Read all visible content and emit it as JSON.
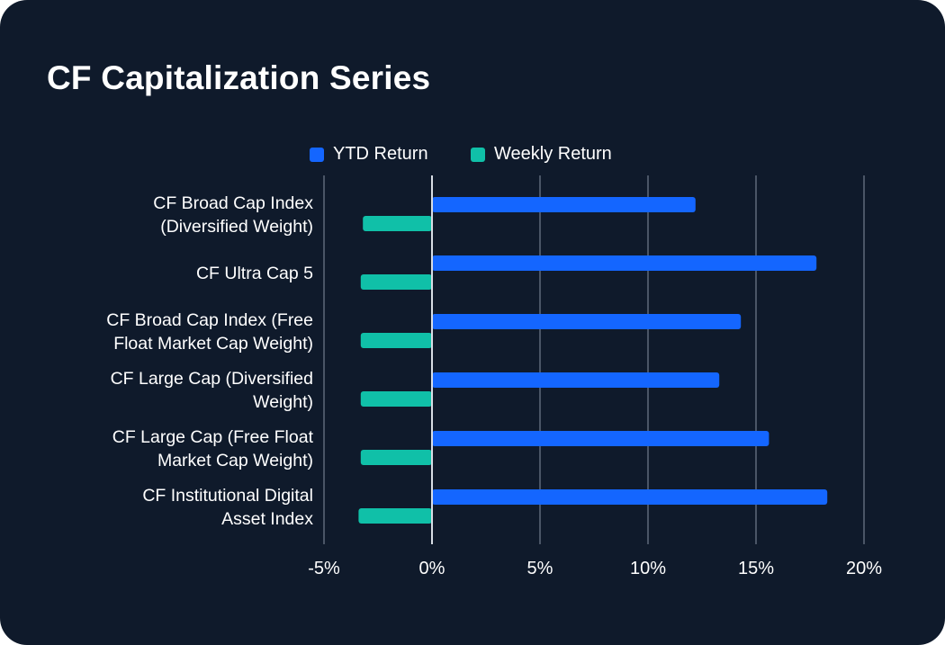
{
  "page": {
    "title": "CF Capitalization Series"
  },
  "colors": {
    "background": "#0f1a2b",
    "ytd": "#1466ff",
    "weekly": "#10c0a8",
    "grid": "#4a5566",
    "zero": "#d8dde5",
    "text": "#ffffff"
  },
  "chart_data": {
    "type": "bar",
    "orientation": "horizontal",
    "title": "CF Capitalization Series",
    "categories": [
      [
        "CF Broad Cap Index",
        "(Diversified Weight)"
      ],
      [
        "CF Ultra Cap 5"
      ],
      [
        "CF Broad Cap Index (Free",
        "Float Market Cap Weight)"
      ],
      [
        "CF Large Cap (Diversified",
        "Weight)"
      ],
      [
        "CF Large Cap (Free Float",
        "Market Cap Weight)"
      ],
      [
        "CF Institutional Digital",
        "Asset Index"
      ]
    ],
    "series": [
      {
        "name": "YTD Return",
        "color": "#1466ff",
        "values": [
          12.2,
          17.8,
          14.3,
          13.3,
          15.6,
          18.3
        ]
      },
      {
        "name": "Weekly Return",
        "color": "#10c0a8",
        "values": [
          -3.2,
          -3.3,
          -3.3,
          -3.3,
          -3.3,
          -3.4
        ]
      }
    ],
    "xlim": [
      -5,
      20
    ],
    "xticks": [
      -5,
      0,
      5,
      10,
      15,
      20
    ],
    "xtick_labels": [
      "-5%",
      "0%",
      "5%",
      "10%",
      "15%",
      "20%"
    ],
    "xlabel": "",
    "ylabel": "",
    "legend": "top-center",
    "grid": true
  }
}
